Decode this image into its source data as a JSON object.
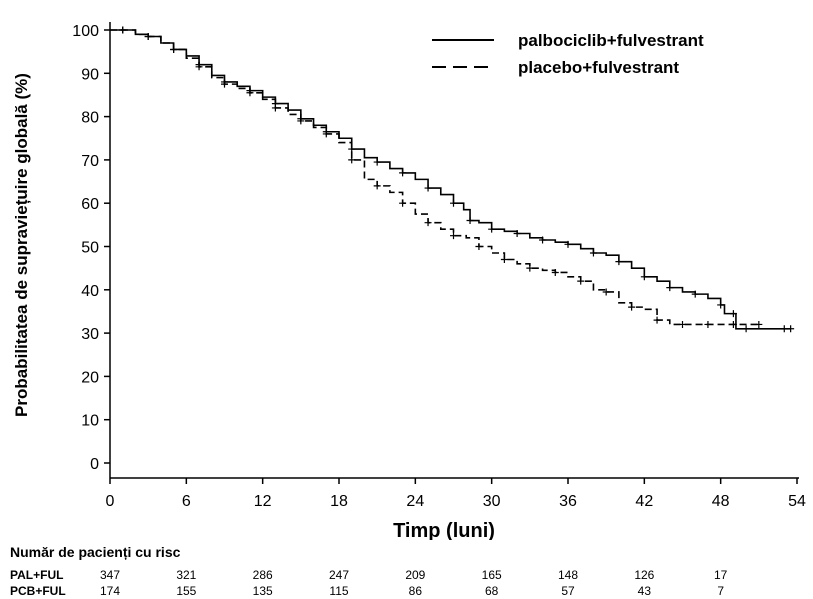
{
  "chart_data": {
    "type": "line",
    "xlabel": "Timp (luni)",
    "ylabel": "Probabilitatea de supraviețuire globală (%)",
    "xlim": [
      0,
      54
    ],
    "ylim": [
      0,
      100
    ],
    "x_ticks": [
      0,
      6,
      12,
      18,
      24,
      30,
      36,
      42,
      48,
      54
    ],
    "y_ticks": [
      0,
      10,
      20,
      30,
      40,
      50,
      60,
      70,
      80,
      90,
      100
    ],
    "legend_position": "top-right",
    "series": [
      {
        "name": "palbociclib+fulvestrant",
        "line_style": "solid",
        "points": [
          [
            0,
            100
          ],
          [
            1,
            100
          ],
          [
            2,
            99
          ],
          [
            3,
            98.5
          ],
          [
            4,
            97
          ],
          [
            5,
            95.5
          ],
          [
            6,
            94
          ],
          [
            7,
            92
          ],
          [
            8,
            89.5
          ],
          [
            9,
            88
          ],
          [
            10,
            87
          ],
          [
            11,
            86
          ],
          [
            12,
            84.5
          ],
          [
            13,
            83
          ],
          [
            14,
            81.5
          ],
          [
            15,
            79.5
          ],
          [
            16,
            78
          ],
          [
            17,
            76.5
          ],
          [
            18,
            75
          ],
          [
            19,
            72.5
          ],
          [
            20,
            70.5
          ],
          [
            21,
            69.5
          ],
          [
            22,
            68
          ],
          [
            23,
            67
          ],
          [
            24,
            65.5
          ],
          [
            25,
            63.5
          ],
          [
            26,
            62
          ],
          [
            27,
            60
          ],
          [
            27.8,
            58.5
          ],
          [
            28.3,
            56
          ],
          [
            29,
            55.5
          ],
          [
            30,
            54
          ],
          [
            31,
            53.5
          ],
          [
            32,
            53
          ],
          [
            33,
            52
          ],
          [
            34,
            51.5
          ],
          [
            35,
            51
          ],
          [
            36,
            50.5
          ],
          [
            37,
            49.5
          ],
          [
            38,
            48.5
          ],
          [
            39,
            48
          ],
          [
            40,
            46.5
          ],
          [
            41,
            45
          ],
          [
            42,
            43
          ],
          [
            43,
            42
          ],
          [
            44,
            40.5
          ],
          [
            45,
            39.5
          ],
          [
            46,
            39
          ],
          [
            47,
            38
          ],
          [
            48,
            36.5
          ],
          [
            48.3,
            34.5
          ],
          [
            49,
            34.5
          ],
          [
            49.2,
            31
          ],
          [
            50,
            31
          ],
          [
            51,
            31
          ],
          [
            53,
            31
          ],
          [
            53.5,
            31
          ]
        ]
      },
      {
        "name": "placebo+fulvestrant",
        "line_style": "dashed",
        "points": [
          [
            0,
            100
          ],
          [
            1,
            100
          ],
          [
            2,
            99
          ],
          [
            3,
            98.5
          ],
          [
            4,
            97
          ],
          [
            5,
            95.5
          ],
          [
            6,
            93.5
          ],
          [
            7,
            91.5
          ],
          [
            8,
            89
          ],
          [
            9,
            87.5
          ],
          [
            10,
            86.5
          ],
          [
            11,
            85.5
          ],
          [
            12,
            84
          ],
          [
            13,
            82
          ],
          [
            14,
            80.5
          ],
          [
            15,
            79
          ],
          [
            16,
            77.5
          ],
          [
            17,
            76
          ],
          [
            18,
            74
          ],
          [
            19,
            70
          ],
          [
            20,
            65.5
          ],
          [
            21,
            64
          ],
          [
            22,
            62.5
          ],
          [
            23,
            60
          ],
          [
            24,
            57.5
          ],
          [
            25,
            55.5
          ],
          [
            26,
            54
          ],
          [
            27,
            52.5
          ],
          [
            28,
            52
          ],
          [
            29,
            50
          ],
          [
            30,
            48.5
          ],
          [
            31,
            47
          ],
          [
            32,
            46
          ],
          [
            33,
            45
          ],
          [
            34,
            44.5
          ],
          [
            35,
            44
          ],
          [
            36,
            43
          ],
          [
            37,
            42
          ],
          [
            38,
            40
          ],
          [
            39,
            39.5
          ],
          [
            40,
            37
          ],
          [
            41,
            36
          ],
          [
            42,
            35.5
          ],
          [
            43,
            33
          ],
          [
            44,
            32
          ],
          [
            45,
            32
          ],
          [
            46,
            32
          ],
          [
            47,
            32
          ],
          [
            48,
            32
          ],
          [
            49,
            32
          ],
          [
            50,
            32
          ],
          [
            51,
            32
          ]
        ]
      }
    ],
    "risk_table": {
      "title": "Număr de pacienți cu risc",
      "times": [
        0,
        6,
        12,
        18,
        24,
        30,
        36,
        42,
        48
      ],
      "rows": [
        {
          "label": "PAL+FUL",
          "values": [
            "347",
            "321",
            "286",
            "247",
            "209",
            "165",
            "148",
            "126",
            "17"
          ]
        },
        {
          "label": "PCB+FUL",
          "values": [
            "174",
            "155",
            "135",
            "115",
            "86",
            "68",
            "57",
            "43",
            "7"
          ]
        }
      ]
    }
  }
}
